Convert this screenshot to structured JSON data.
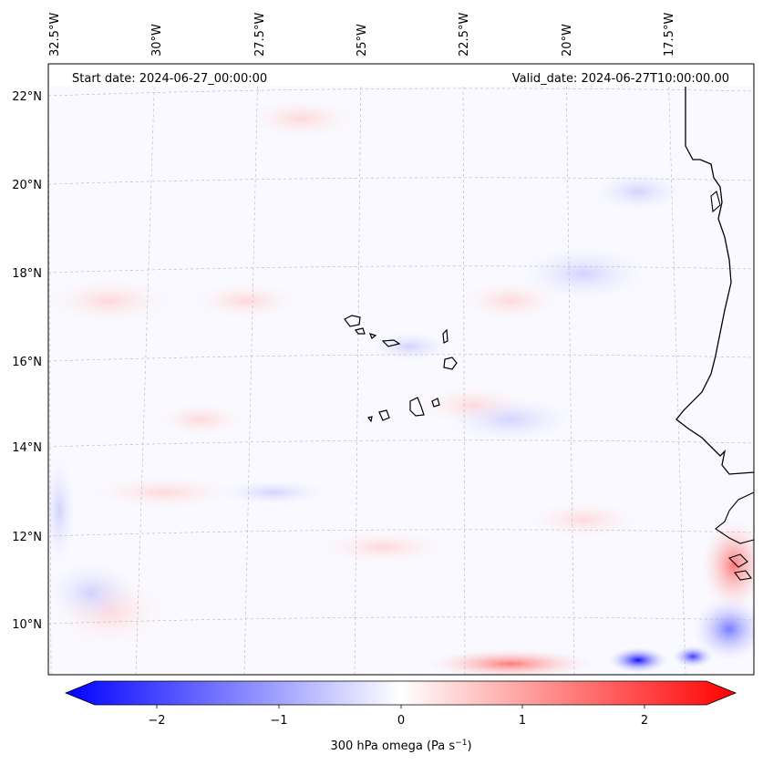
{
  "header": {
    "start_date": "Start date: 2024-06-27_00:00:00",
    "valid_date": "Valid_date: 2024-06-27T10:00:00.00"
  },
  "map": {
    "lon_labels": [
      "32.5°W",
      "30°W",
      "27.5°W",
      "25°W",
      "22.5°W",
      "20°W",
      "17.5°W"
    ],
    "lat_labels": [
      "22°N",
      "20°N",
      "18°N",
      "16°N",
      "14°N",
      "12°N",
      "10°N"
    ]
  },
  "colorbar": {
    "ticks": [
      "−2",
      "−1",
      "0",
      "1",
      "2"
    ],
    "label": "300 hPa omega (Pa s",
    "label_unit_exp": "−1",
    "label_close": ")",
    "min_color": "#0000ff",
    "mid_color": "#ffffff",
    "max_color": "#ff0000"
  }
}
